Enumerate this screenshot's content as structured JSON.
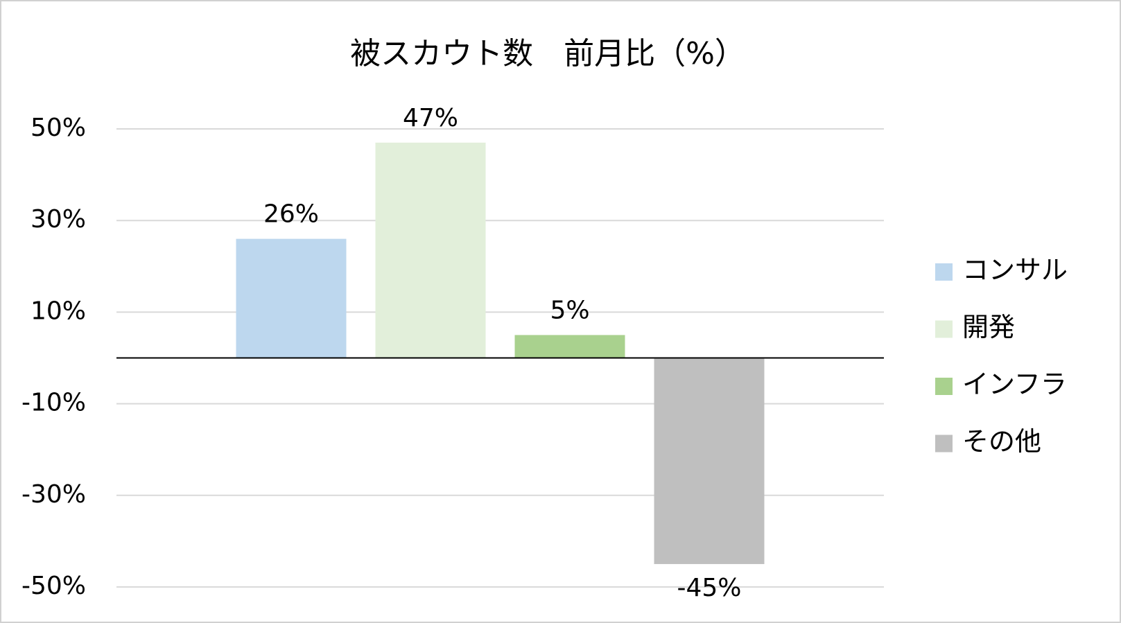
{
  "chart_data": {
    "type": "bar",
    "title": "被スカウト数　前月比（%）",
    "categories": [
      null
    ],
    "series": [
      {
        "name": "コンサル",
        "color": "#bdd7ee",
        "values": [
          26
        ],
        "value_labels": [
          "26%"
        ]
      },
      {
        "name": "開発",
        "color": "#e2efda",
        "values": [
          47
        ],
        "value_labels": [
          "47%"
        ]
      },
      {
        "name": "インフラ",
        "color": "#a9d18e",
        "values": [
          5
        ],
        "value_labels": [
          "5%"
        ]
      },
      {
        "name": "その他",
        "color": "#bfbfbf",
        "values": [
          -45
        ],
        "value_labels": [
          "-45%"
        ]
      }
    ],
    "ylim": [
      -50,
      50
    ],
    "yticks": [
      {
        "value": 50,
        "label": "50%"
      },
      {
        "value": 30,
        "label": "30%"
      },
      {
        "value": 10,
        "label": "10%"
      },
      {
        "value": -10,
        "label": "-10%"
      },
      {
        "value": -30,
        "label": "-30%"
      },
      {
        "value": -50,
        "label": "-50%"
      }
    ],
    "grid": true,
    "legend": "right"
  }
}
